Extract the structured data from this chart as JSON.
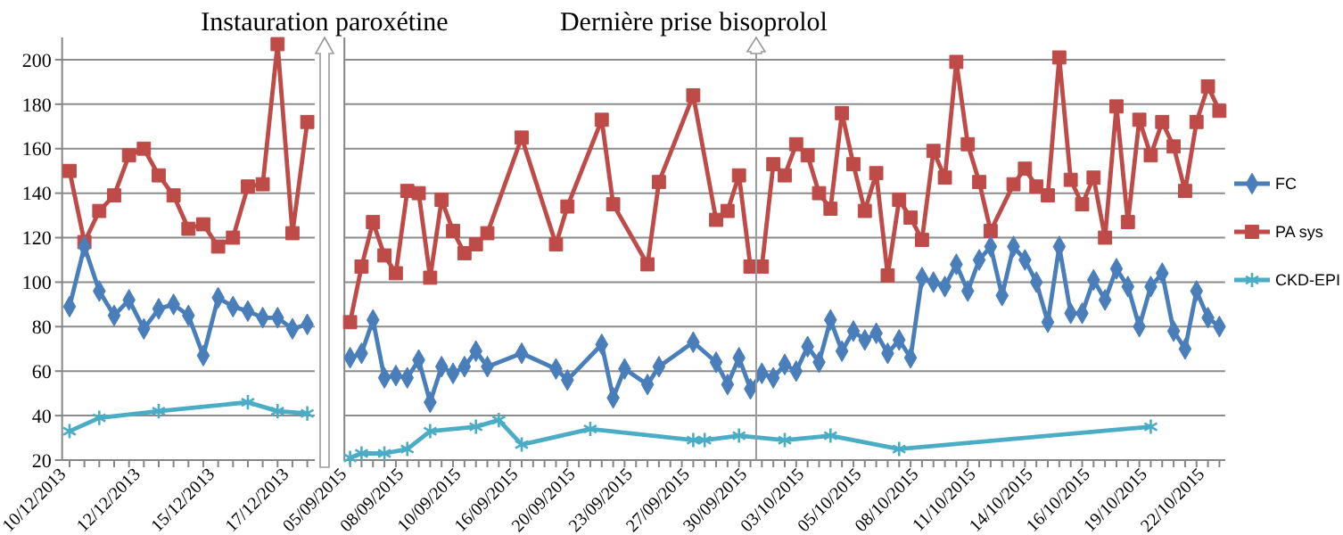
{
  "chart_data": [
    {
      "type": "line",
      "categories": [
        "10/12/2013",
        null,
        null,
        null,
        null,
        "12/12/2013",
        null,
        null,
        null,
        null,
        "15/12/2013",
        null,
        null,
        null,
        null,
        "17/12/2013",
        null
      ],
      "ylim": [
        20,
        210
      ],
      "yticks": [
        20,
        40,
        60,
        80,
        100,
        120,
        140,
        160,
        180,
        200
      ],
      "grid": "y",
      "legend": false,
      "annotations": [
        "Instauration paroxétine"
      ],
      "series": [
        {
          "color": "#4a7ebb",
          "marker": "diamond",
          "values": [
            89,
            116,
            96,
            85,
            92,
            79,
            88,
            90,
            85,
            67,
            93,
            89,
            87,
            84,
            84,
            79,
            81
          ]
        },
        {
          "color": "#be4b48",
          "marker": "square",
          "values": [
            150,
            118,
            132,
            139,
            157,
            160,
            148,
            139,
            124,
            126,
            116,
            120,
            143,
            144,
            207,
            122,
            172
          ]
        },
        {
          "color": "#4bacc6",
          "marker": "cross",
          "values": [
            33,
            null,
            39,
            null,
            null,
            null,
            42,
            null,
            null,
            null,
            null,
            null,
            46,
            null,
            42,
            null,
            41
          ]
        }
      ]
    },
    {
      "type": "line",
      "categories": [
        "05/09/2015",
        null,
        null,
        null,
        null,
        "08/09/2015",
        null,
        null,
        null,
        null,
        "10/09/2015",
        null,
        null,
        null,
        null,
        "16/09/2015",
        null,
        null,
        null,
        null,
        "20/09/2015",
        null,
        null,
        null,
        null,
        "23/09/2015",
        null,
        null,
        null,
        null,
        "27/09/2015",
        null,
        null,
        null,
        null,
        "30/09/2015",
        null,
        null,
        null,
        null,
        "03/10/2015",
        null,
        null,
        null,
        null,
        "05/10/2015",
        null,
        null,
        null,
        null,
        "08/10/2015",
        null,
        null,
        null,
        null,
        "11/10/2015",
        null,
        null,
        null,
        null,
        "14/10/2015",
        null,
        null,
        null,
        null,
        "16/10/2015",
        null,
        null,
        null,
        null,
        "19/10/2015",
        null,
        null,
        null,
        null,
        "22/10/2015",
        null
      ],
      "ylim": [
        20,
        210
      ],
      "yticks": [
        20,
        40,
        60,
        80,
        100,
        120,
        140,
        160,
        180,
        200
      ],
      "grid": "y",
      "tick_labels": "x",
      "legend": "right",
      "annotations": [
        "Dernière prise bisoprolol"
      ],
      "series": [
        {
          "name": "FC",
          "color": "#4a7ebb",
          "marker": "diamond",
          "values": [
            66,
            68,
            83,
            57,
            58,
            57,
            65,
            46,
            62,
            59,
            62,
            69,
            62,
            null,
            null,
            68,
            null,
            null,
            61,
            56,
            null,
            null,
            72,
            48,
            61,
            null,
            54,
            62,
            null,
            null,
            73,
            null,
            64,
            54,
            66,
            52,
            59,
            57,
            63,
            60,
            71,
            64,
            83,
            69,
            78,
            74,
            77,
            68,
            74,
            66,
            102,
            100,
            98,
            108,
            96,
            110,
            116,
            94,
            116,
            110,
            100,
            82,
            116,
            86,
            86,
            101,
            92,
            106,
            98,
            80,
            98,
            104,
            78,
            70,
            96,
            84,
            80
          ]
        },
        {
          "name": "PA sys",
          "color": "#be4b48",
          "marker": "square",
          "values": [
            82,
            107,
            127,
            112,
            104,
            141,
            140,
            102,
            137,
            123,
            113,
            117,
            122,
            null,
            null,
            165,
            null,
            null,
            117,
            134,
            null,
            null,
            173,
            135,
            null,
            null,
            108,
            145,
            null,
            null,
            184,
            null,
            128,
            132,
            148,
            107,
            107,
            153,
            148,
            162,
            157,
            140,
            133,
            176,
            153,
            132,
            149,
            103,
            137,
            129,
            119,
            159,
            147,
            199,
            162,
            145,
            123,
            null,
            144,
            151,
            143,
            139,
            201,
            146,
            135,
            147,
            120,
            179,
            127,
            173,
            157,
            172,
            161,
            141,
            172,
            188,
            177
          ]
        },
        {
          "name": "CKD-EPI",
          "color": "#4bacc6",
          "marker": "cross",
          "values": [
            21,
            23,
            null,
            23,
            null,
            25,
            null,
            33,
            null,
            null,
            null,
            35,
            null,
            38,
            null,
            27,
            null,
            null,
            null,
            null,
            null,
            34,
            null,
            null,
            null,
            null,
            null,
            null,
            null,
            null,
            29,
            29,
            null,
            null,
            31,
            null,
            null,
            null,
            29,
            null,
            null,
            null,
            31,
            null,
            null,
            null,
            null,
            null,
            25,
            null,
            null,
            null,
            null,
            null,
            null,
            null,
            null,
            null,
            null,
            null,
            null,
            null,
            null,
            null,
            null,
            null,
            null,
            null,
            null,
            null,
            35,
            null,
            null,
            null,
            null,
            null,
            null
          ]
        }
      ]
    }
  ]
}
